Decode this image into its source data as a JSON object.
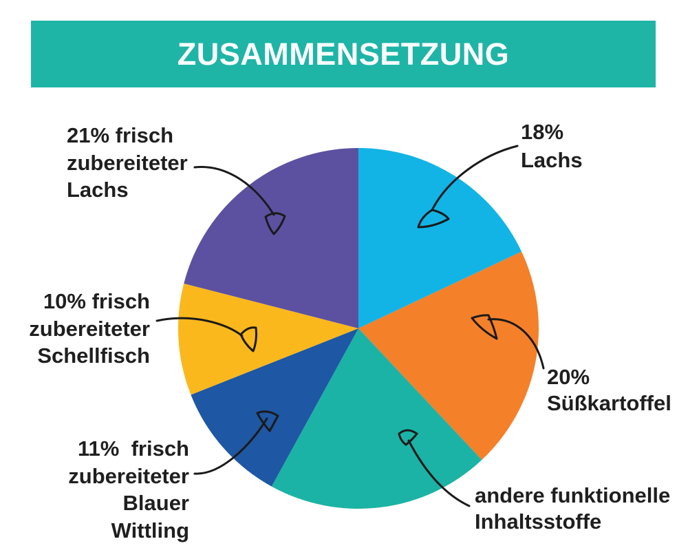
{
  "colors": {
    "banner": "#1eb5a7",
    "banner_text": "#ffffff",
    "label_text": "#1f1f1f"
  },
  "chart_data": {
    "type": "pie",
    "title": "ZUSAMMENSETZUNG",
    "slices": [
      {
        "label_lines": [
          "18%",
          "Lachs"
        ],
        "value": 18,
        "color": "#12b4e6"
      },
      {
        "label_lines": [
          "20%",
          "Süßkartoffel"
        ],
        "value": 20,
        "color": "#f4802a"
      },
      {
        "label_lines": [
          "andere funktionelle",
          "Inhaltsstoffe"
        ],
        "value": 20,
        "color": "#1bb3a5"
      },
      {
        "label_lines": [
          "11%  frisch",
          "zubereiteter",
          "Blauer",
          "Wittling"
        ],
        "value": 11,
        "color": "#1e57a3"
      },
      {
        "label_lines": [
          "10% frisch",
          "zubereiteter",
          "Schellfisch"
        ],
        "value": 10,
        "color": "#fbb81c"
      },
      {
        "label_lines": [
          "21% frisch",
          "zubereiteter",
          "Lachs"
        ],
        "value": 21,
        "color": "#5c51a0"
      }
    ]
  }
}
